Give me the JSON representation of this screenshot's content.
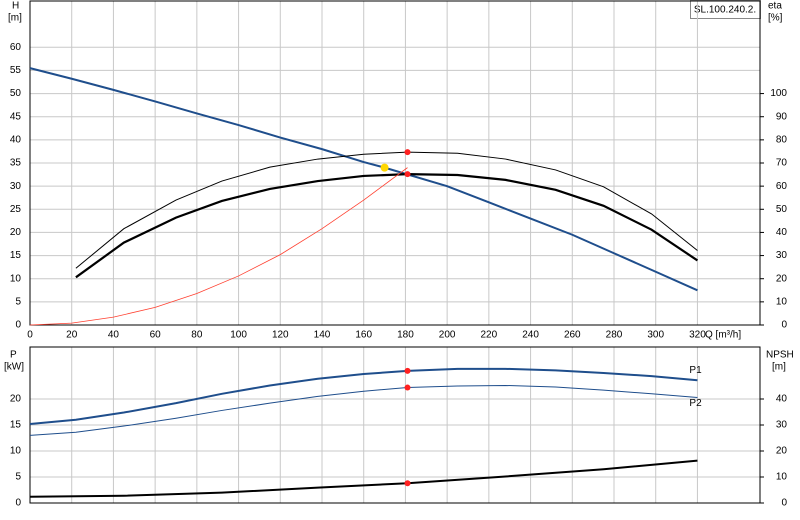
{
  "chart_data": [
    {
      "type": "line",
      "title": "SL.100.240.2.",
      "ylabel": "H",
      "yunit": "[m]",
      "y2label": "eta",
      "y2unit": "[%]",
      "xlabel": "Q [m³/h]",
      "xlim": [
        0,
        350
      ],
      "xticks": [
        0,
        20,
        40,
        60,
        80,
        100,
        120,
        140,
        160,
        180,
        200,
        220,
        240,
        260,
        280,
        300,
        320
      ],
      "ylim": [
        0,
        70
      ],
      "yticks": [
        0,
        5,
        10,
        15,
        20,
        25,
        30,
        35,
        40,
        45,
        50,
        55,
        60
      ],
      "y2lim": [
        0,
        140
      ],
      "y2ticks": [
        0,
        10,
        20,
        30,
        40,
        50,
        60,
        70,
        80,
        90,
        100
      ],
      "grid": true,
      "series": [
        {
          "color": "#1f4e8c",
          "width": 2,
          "marker_index": 9,
          "marker_color": "#ffd700",
          "x": [
            0,
            20,
            40,
            60,
            80,
            100,
            120,
            140,
            160,
            170,
            200,
            220,
            240,
            260,
            280,
            300,
            320
          ],
          "values": [
            55.5,
            53.2,
            50.8,
            48.3,
            45.7,
            43.2,
            40.5,
            38,
            35.2,
            34,
            30,
            26.5,
            23,
            19.5,
            15.5,
            11.5,
            7.5
          ]
        },
        {
          "color": "#000000",
          "width": 2.2,
          "axis": "y2",
          "marker_index": 7,
          "marker_color": "#ff2020",
          "x": [
            22,
            45,
            70,
            92,
            115,
            138,
            160,
            181,
            205,
            228,
            252,
            275,
            298,
            320
          ],
          "values": [
            20.6,
            35.6,
            46.4,
            53.6,
            58.8,
            62.2,
            64.4,
            65.2,
            64.8,
            62.7,
            58.4,
            51.5,
            41.2,
            27.9
          ]
        },
        {
          "color": "#000000",
          "width": 1,
          "axis": "y2",
          "marker_index": 7,
          "marker_color": "#ff2020",
          "x": [
            22,
            45,
            70,
            92,
            115,
            138,
            160,
            181,
            205,
            228,
            252,
            275,
            298,
            320
          ],
          "values": [
            24.5,
            41.6,
            54,
            62.2,
            68.2,
            71.7,
            73.8,
            74.7,
            74.2,
            71.7,
            67,
            59.7,
            48,
            32.2
          ]
        },
        {
          "color": "#ff4030",
          "width": 0.8,
          "x": [
            0,
            20,
            40,
            60,
            80,
            100,
            120,
            140,
            160,
            181
          ],
          "values": [
            0,
            0.4,
            1.7,
            3.8,
            6.8,
            10.6,
            15.2,
            20.8,
            27,
            34
          ]
        }
      ]
    },
    {
      "type": "line",
      "ylabel": "P",
      "yunit": "[kW]",
      "y2label": "NPSH",
      "y2unit": "[m]",
      "xlim": [
        0,
        350
      ],
      "ylim": [
        0,
        30
      ],
      "yticks": [
        0,
        5,
        10,
        15,
        20
      ],
      "y2lim": [
        0,
        60
      ],
      "y2ticks": [
        0,
        10,
        20,
        30,
        40
      ],
      "grid": true,
      "series": [
        {
          "name": "P1",
          "color": "#1f4e8c",
          "width": 2,
          "marker_index": 8,
          "marker_color": "#ff2020",
          "x": [
            0,
            22,
            45,
            70,
            92,
            115,
            138,
            160,
            181,
            205,
            228,
            252,
            275,
            298,
            320
          ],
          "values": [
            15.2,
            16,
            17.4,
            19.2,
            21,
            22.6,
            23.9,
            24.8,
            25.4,
            25.8,
            25.8,
            25.5,
            25,
            24.4,
            23.6
          ]
        },
        {
          "name": "P2",
          "color": "#1f4e8c",
          "width": 1,
          "marker_index": 8,
          "marker_color": "#ff2020",
          "x": [
            0,
            22,
            45,
            70,
            92,
            115,
            138,
            160,
            181,
            205,
            228,
            252,
            275,
            298,
            320
          ],
          "values": [
            13,
            13.6,
            14.8,
            16.3,
            17.8,
            19.2,
            20.5,
            21.5,
            22.2,
            22.5,
            22.6,
            22.3,
            21.7,
            21,
            20.3
          ]
        },
        {
          "color": "#000000",
          "width": 2,
          "axis": "y2",
          "marker_index": 4,
          "marker_color": "#ff2020",
          "x": [
            0,
            45,
            92,
            138,
            181,
            228,
            275,
            320
          ],
          "values": [
            2.4,
            2.8,
            4,
            5.9,
            7.6,
            10.2,
            13,
            16.3
          ]
        }
      ]
    }
  ]
}
